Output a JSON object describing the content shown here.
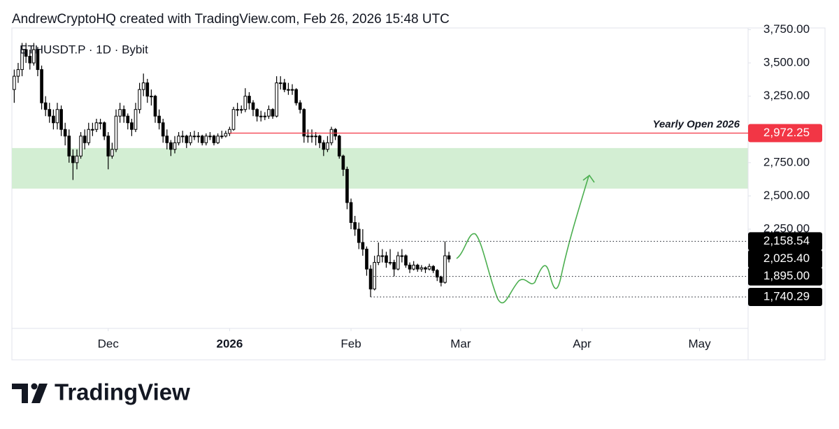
{
  "header": "AndrewCryptoHQ created with TradingView.com, Feb 26, 2026 15:48 UTC",
  "logo": "TradingView",
  "chart_data": {
    "type": "candlestick",
    "symbol": "ETHUSDT.P · 1D · Bybit",
    "up_color": "#ffffff",
    "down_color": "#000000",
    "xlim": [
      -24.6,
      163.4
    ],
    "xticks": [
      {
        "value": 0,
        "label": "Dec"
      },
      {
        "value": 31,
        "label": "2026"
      },
      {
        "value": 62,
        "label": "Feb"
      },
      {
        "value": 90,
        "label": "Mar"
      },
      {
        "value": 121,
        "label": "Apr"
      },
      {
        "value": 151,
        "label": "May"
      }
    ],
    "ylim": [
      1504,
      3763
    ],
    "yticks": [
      {
        "value": 3750,
        "label": "3,750.00"
      },
      {
        "value": 3500,
        "label": "3,500.00"
      },
      {
        "value": 3250,
        "label": "3,250.00"
      },
      {
        "value": 2750,
        "label": "2,750.00"
      },
      {
        "value": 2500,
        "label": "2,500.00"
      },
      {
        "value": 2250,
        "label": "2,250.00"
      }
    ],
    "zone": {
      "low": 2555,
      "high": 2860,
      "color": "#d3eed3"
    },
    "yearly_open": {
      "name": "Yearly Open 2026",
      "value": 2972.25,
      "label": "2,972.25",
      "start": 31,
      "color": "#f23645"
    },
    "levels": [
      {
        "value": 2158.54,
        "label": "2,158.54",
        "start": 67
      },
      {
        "value": 1895,
        "label": "1,895.00",
        "start": 67
      },
      {
        "value": 1740.29,
        "label": "1,740.29",
        "start": 67
      }
    ],
    "last_price": {
      "value": 2025.4,
      "label": "2,025.40"
    },
    "x": [
      -24,
      -23,
      -22,
      -21,
      -20,
      -19,
      -18,
      -17,
      -16,
      -15,
      -14,
      -13,
      -12,
      -11,
      -10,
      -9,
      -8,
      -7,
      -6,
      -5,
      -4,
      -3,
      -2,
      -1,
      0,
      1,
      2,
      3,
      4,
      5,
      6,
      7,
      8,
      9,
      10,
      11,
      12,
      13,
      14,
      15,
      16,
      17,
      18,
      19,
      20,
      21,
      22,
      23,
      24,
      25,
      26,
      27,
      28,
      29,
      30,
      31,
      32,
      33,
      34,
      35,
      36,
      37,
      38,
      39,
      40,
      41,
      42,
      43,
      44,
      45,
      46,
      47,
      48,
      49,
      50,
      51,
      52,
      53,
      54,
      55,
      56,
      57,
      58,
      59,
      60,
      61,
      62,
      63,
      64,
      65,
      66,
      67,
      68,
      69,
      70,
      71,
      72,
      73,
      74,
      75,
      76,
      77,
      78,
      79,
      80,
      81,
      82,
      83,
      84,
      85,
      86,
      87
    ],
    "ohlc": [
      [
        3300,
        3450,
        3200,
        3400
      ],
      [
        3400,
        3500,
        3350,
        3450
      ],
      [
        3450,
        3650,
        3400,
        3600
      ],
      [
        3600,
        3650,
        3500,
        3550
      ],
      [
        3550,
        3600,
        3450,
        3500
      ],
      [
        3500,
        3650,
        3480,
        3600
      ],
      [
        3600,
        3620,
        3400,
        3450
      ],
      [
        3450,
        3480,
        3150,
        3200
      ],
      [
        3200,
        3250,
        3100,
        3150
      ],
      [
        3150,
        3200,
        3050,
        3100
      ],
      [
        3100,
        3150,
        3000,
        3050
      ],
      [
        3050,
        3200,
        3000,
        3150
      ],
      [
        3150,
        3180,
        2950,
        3000
      ],
      [
        3000,
        3050,
        2880,
        2950
      ],
      [
        2950,
        3000,
        2750,
        2800
      ],
      [
        2800,
        2850,
        2620,
        2750
      ],
      [
        2750,
        2850,
        2700,
        2800
      ],
      [
        2800,
        2980,
        2780,
        2950
      ],
      [
        2950,
        3000,
        2850,
        2900
      ],
      [
        2900,
        3050,
        2880,
        3000
      ],
      [
        3000,
        3050,
        2950,
        3000
      ],
      [
        3000,
        3080,
        2980,
        3050
      ],
      [
        3050,
        3080,
        3000,
        3050
      ],
      [
        3050,
        3060,
        2920,
        2950
      ],
      [
        2950,
        2980,
        2700,
        2800
      ],
      [
        2800,
        2900,
        2780,
        2850
      ],
      [
        2850,
        3150,
        2830,
        3100
      ],
      [
        3100,
        3200,
        3050,
        3150
      ],
      [
        3150,
        3180,
        3050,
        3100
      ],
      [
        3100,
        3120,
        3000,
        3050
      ],
      [
        3050,
        3080,
        2950,
        3000
      ],
      [
        3000,
        3200,
        2980,
        3150
      ],
      [
        3150,
        3350,
        3120,
        3300
      ],
      [
        3300,
        3420,
        3250,
        3350
      ],
      [
        3350,
        3380,
        3200,
        3250
      ],
      [
        3250,
        3300,
        3180,
        3250
      ],
      [
        3250,
        3260,
        3050,
        3100
      ],
      [
        3100,
        3150,
        3000,
        3050
      ],
      [
        3050,
        3080,
        2900,
        2950
      ],
      [
        2950,
        3000,
        2850,
        2900
      ],
      [
        2900,
        2920,
        2800,
        2850
      ],
      [
        2850,
        2950,
        2820,
        2900
      ],
      [
        2900,
        2980,
        2880,
        2950
      ],
      [
        2950,
        2990,
        2900,
        2950
      ],
      [
        2950,
        2960,
        2860,
        2900
      ],
      [
        2900,
        2980,
        2880,
        2950
      ],
      [
        2950,
        2990,
        2920,
        2950
      ],
      [
        2950,
        2980,
        2900,
        2950
      ],
      [
        2950,
        2960,
        2880,
        2900
      ],
      [
        2900,
        2970,
        2880,
        2950
      ],
      [
        2950,
        2980,
        2920,
        2950
      ],
      [
        2950,
        2960,
        2880,
        2900
      ],
      [
        2900,
        2970,
        2890,
        2950
      ],
      [
        2950,
        2990,
        2930,
        2950
      ],
      [
        2950,
        2990,
        2940,
        2970
      ],
      [
        2970,
        3020,
        2950,
        3000
      ],
      [
        3000,
        3170,
        2990,
        3150
      ],
      [
        3150,
        3200,
        3100,
        3150
      ],
      [
        3150,
        3180,
        3120,
        3150
      ],
      [
        3150,
        3310,
        3130,
        3250
      ],
      [
        3250,
        3280,
        3150,
        3200
      ],
      [
        3200,
        3220,
        3100,
        3150
      ],
      [
        3150,
        3160,
        3060,
        3100
      ],
      [
        3100,
        3140,
        3060,
        3100
      ],
      [
        3100,
        3130,
        3070,
        3100
      ],
      [
        3100,
        3180,
        3080,
        3150
      ],
      [
        3150,
        3160,
        3080,
        3100
      ],
      [
        3100,
        3400,
        3090,
        3350
      ],
      [
        3350,
        3400,
        3300,
        3350
      ],
      [
        3350,
        3380,
        3280,
        3300
      ],
      [
        3300,
        3350,
        3260,
        3300
      ],
      [
        3300,
        3340,
        3260,
        3300
      ],
      [
        3300,
        3310,
        3180,
        3200
      ],
      [
        3200,
        3220,
        3120,
        3150
      ],
      [
        3150,
        3160,
        2900,
        2950
      ],
      [
        2950,
        3000,
        2900,
        2950
      ],
      [
        2950,
        3000,
        2900,
        2950
      ],
      [
        2950,
        2980,
        2880,
        2950
      ],
      [
        2950,
        2960,
        2860,
        2900
      ],
      [
        2900,
        2920,
        2800,
        2850
      ],
      [
        2850,
        2950,
        2830,
        2900
      ],
      [
        2900,
        3020,
        2880,
        3000
      ],
      [
        3000,
        3010,
        2920,
        2950
      ],
      [
        2950,
        2960,
        2780,
        2800
      ],
      [
        2800,
        2810,
        2650,
        2700
      ],
      [
        2700,
        2720,
        2400,
        2450
      ],
      [
        2450,
        2480,
        2250,
        2300
      ],
      [
        2300,
        2350,
        2200,
        2250
      ],
      [
        2250,
        2300,
        2100,
        2150
      ],
      [
        2150,
        2250,
        2050,
        2100
      ],
      [
        2100,
        2120,
        1900,
        1950
      ],
      [
        1950,
        1980,
        1740.29,
        1800
      ],
      [
        1800,
        2050,
        1790,
        2000
      ],
      [
        2000,
        2150,
        1980,
        2050
      ],
      [
        2050,
        2100,
        2000,
        2050
      ],
      [
        2050,
        2080,
        1960,
        2000
      ],
      [
        2000,
        2100,
        1980,
        2000
      ],
      [
        2000,
        2020,
        1895,
        1950
      ],
      [
        1950,
        2080,
        1940,
        2050
      ],
      [
        2050,
        2100,
        2000,
        2050
      ],
      [
        2050,
        2060,
        1960,
        1980
      ],
      [
        1980,
        2000,
        1920,
        1950
      ],
      [
        1950,
        2010,
        1940,
        1980
      ],
      [
        1980,
        1990,
        1930,
        1950
      ],
      [
        1950,
        1980,
        1930,
        1960
      ],
      [
        1960,
        1970,
        1920,
        1950
      ],
      [
        1950,
        1990,
        1940,
        1970
      ],
      [
        1970,
        1980,
        1920,
        1940
      ],
      [
        1940,
        1950,
        1860,
        1890
      ],
      [
        1890,
        1900,
        1820,
        1850
      ],
      [
        1850,
        2158.54,
        1840,
        2050
      ],
      [
        2050,
        2080,
        2000,
        2025.4
      ]
    ]
  }
}
